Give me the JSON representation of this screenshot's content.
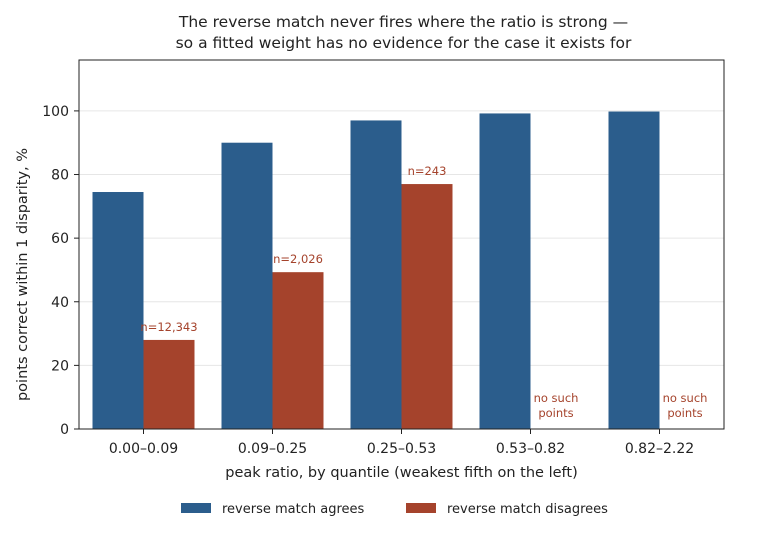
{
  "chart_data": {
    "type": "bar",
    "title": [
      "The reverse match never fires where the ratio is strong —",
      "so a fitted weight has no evidence for the case it exists for"
    ],
    "xlabel": "peak ratio, by quantile (weakest fifth on the left)",
    "ylabel": "points correct within 1 disparity, %",
    "categories": [
      "0.00–0.09",
      "0.09–0.25",
      "0.25–0.53",
      "0.53–0.82",
      "0.82–2.22"
    ],
    "ylim": [
      0,
      116
    ],
    "yticks": [
      0,
      20,
      40,
      60,
      80,
      100
    ],
    "grid": "horizontal",
    "legend_position": "bottom-center",
    "series": [
      {
        "name": "reverse match agrees",
        "color": "#2b5d8c",
        "values": [
          74.5,
          90.0,
          97.0,
          99.2,
          99.8
        ]
      },
      {
        "name": "reverse match disagrees",
        "color": "#a5432c",
        "values": [
          28.0,
          49.3,
          77.0,
          null,
          null
        ]
      }
    ],
    "annotations": [
      [
        "n=12,343"
      ],
      [
        "n=2,026"
      ],
      [
        "n=243"
      ],
      [
        "no such",
        "points"
      ],
      [
        "no such",
        "points"
      ]
    ],
    "annotation_color": "#a5432c"
  }
}
